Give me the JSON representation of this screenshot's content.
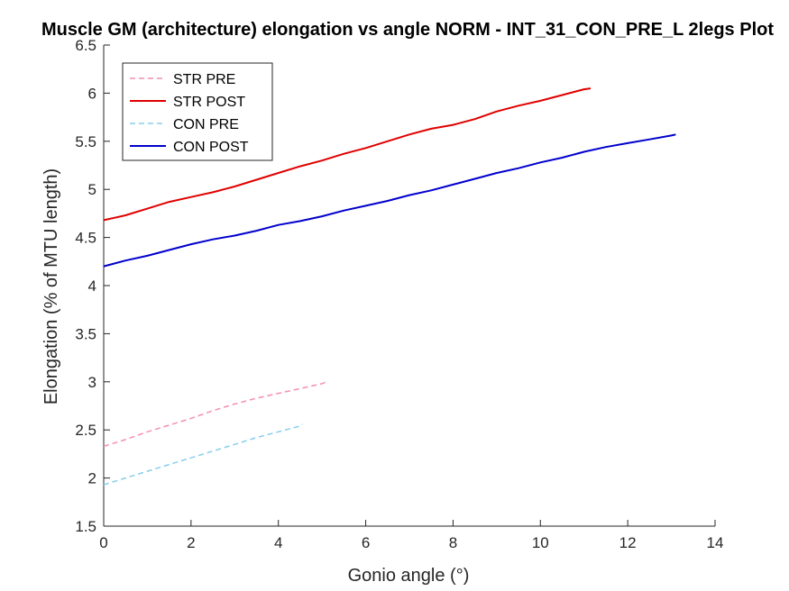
{
  "chart_data": {
    "type": "line",
    "title": "Muscle GM (architecture) elongation vs angle NORM - INT_31_CON_PRE_L 2legs Plot",
    "xlabel": "Gonio angle (°)",
    "ylabel": "Elongation (% of MTU length)",
    "xlim": [
      0,
      14
    ],
    "ylim": [
      1.5,
      6.5
    ],
    "xticks": [
      "0",
      "2",
      "4",
      "6",
      "8",
      "10",
      "12",
      "14"
    ],
    "yticks": [
      "1.5",
      "2",
      "2.5",
      "3",
      "3.5",
      "4",
      "4.5",
      "5",
      "5.5",
      "6",
      "6.5"
    ],
    "grid": false,
    "legend_position": "top-left",
    "series": [
      {
        "name": "STR PRE",
        "color": "#f48fb1",
        "style": "dashed",
        "x": [
          0,
          0.5,
          1,
          1.5,
          2,
          2.5,
          3,
          3.5,
          4,
          4.5,
          5,
          5.1
        ],
        "y": [
          2.33,
          2.4,
          2.48,
          2.55,
          2.62,
          2.7,
          2.77,
          2.83,
          2.88,
          2.93,
          2.98,
          3.0
        ]
      },
      {
        "name": "STR POST",
        "color": "#e00000",
        "style": "solid",
        "x": [
          0,
          0.5,
          1,
          1.5,
          2,
          2.5,
          3,
          3.5,
          4,
          4.5,
          5,
          5.5,
          6,
          6.5,
          7,
          7.5,
          8,
          8.5,
          9,
          9.5,
          10,
          10.5,
          11,
          11.15
        ],
        "y": [
          4.68,
          4.73,
          4.8,
          4.87,
          4.92,
          4.97,
          5.03,
          5.1,
          5.17,
          5.24,
          5.3,
          5.37,
          5.43,
          5.5,
          5.57,
          5.63,
          5.67,
          5.73,
          5.81,
          5.87,
          5.92,
          5.98,
          6.04,
          6.05
        ]
      },
      {
        "name": "CON PRE",
        "color": "#87ceeb",
        "style": "dashed",
        "x": [
          0,
          0.5,
          1,
          1.5,
          2,
          2.5,
          3,
          3.5,
          4,
          4.5,
          4.55
        ],
        "y": [
          1.93,
          2.0,
          2.07,
          2.14,
          2.21,
          2.28,
          2.35,
          2.42,
          2.48,
          2.54,
          2.56
        ]
      },
      {
        "name": "CON POST",
        "color": "#0000cd",
        "style": "solid",
        "x": [
          0,
          0.5,
          1,
          1.5,
          2,
          2.5,
          3,
          3.5,
          4,
          4.5,
          5,
          5.5,
          6,
          6.5,
          7,
          7.5,
          8,
          8.5,
          9,
          9.5,
          10,
          10.5,
          11,
          11.5,
          12,
          12.5,
          13,
          13.1
        ],
        "y": [
          4.2,
          4.26,
          4.31,
          4.37,
          4.43,
          4.48,
          4.52,
          4.57,
          4.63,
          4.67,
          4.72,
          4.78,
          4.83,
          4.88,
          4.94,
          4.99,
          5.05,
          5.11,
          5.17,
          5.22,
          5.28,
          5.33,
          5.39,
          5.44,
          5.48,
          5.52,
          5.56,
          5.57
        ]
      }
    ]
  }
}
